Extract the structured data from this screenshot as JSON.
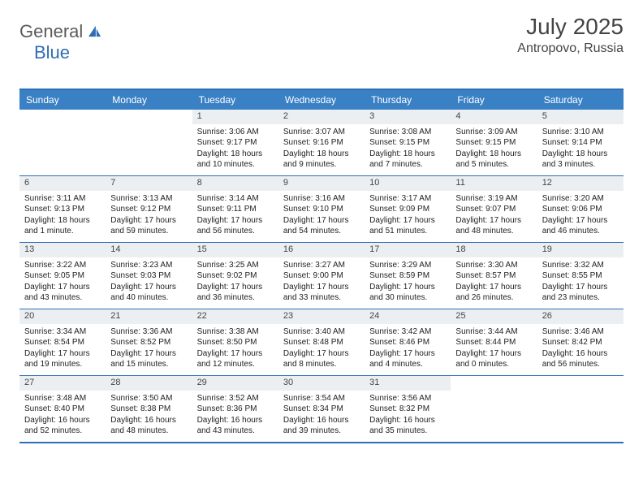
{
  "brand": {
    "part1": "General",
    "part2": "Blue"
  },
  "title": {
    "month": "July 2025",
    "location": "Antropovo, Russia"
  },
  "colors": {
    "accent": "#2e6fb4",
    "header_bg": "#3a80c4",
    "daynum_bg": "#eceff2",
    "text": "#222222",
    "muted": "#5a5a5a",
    "background": "#ffffff"
  },
  "dayHeaders": [
    "Sunday",
    "Monday",
    "Tuesday",
    "Wednesday",
    "Thursday",
    "Friday",
    "Saturday"
  ],
  "weeks": [
    [
      {
        "n": "",
        "sr": "",
        "ss": "",
        "dl": ""
      },
      {
        "n": "",
        "sr": "",
        "ss": "",
        "dl": ""
      },
      {
        "n": "1",
        "sr": "Sunrise: 3:06 AM",
        "ss": "Sunset: 9:17 PM",
        "dl": "Daylight: 18 hours and 10 minutes."
      },
      {
        "n": "2",
        "sr": "Sunrise: 3:07 AM",
        "ss": "Sunset: 9:16 PM",
        "dl": "Daylight: 18 hours and 9 minutes."
      },
      {
        "n": "3",
        "sr": "Sunrise: 3:08 AM",
        "ss": "Sunset: 9:15 PM",
        "dl": "Daylight: 18 hours and 7 minutes."
      },
      {
        "n": "4",
        "sr": "Sunrise: 3:09 AM",
        "ss": "Sunset: 9:15 PM",
        "dl": "Daylight: 18 hours and 5 minutes."
      },
      {
        "n": "5",
        "sr": "Sunrise: 3:10 AM",
        "ss": "Sunset: 9:14 PM",
        "dl": "Daylight: 18 hours and 3 minutes."
      }
    ],
    [
      {
        "n": "6",
        "sr": "Sunrise: 3:11 AM",
        "ss": "Sunset: 9:13 PM",
        "dl": "Daylight: 18 hours and 1 minute."
      },
      {
        "n": "7",
        "sr": "Sunrise: 3:13 AM",
        "ss": "Sunset: 9:12 PM",
        "dl": "Daylight: 17 hours and 59 minutes."
      },
      {
        "n": "8",
        "sr": "Sunrise: 3:14 AM",
        "ss": "Sunset: 9:11 PM",
        "dl": "Daylight: 17 hours and 56 minutes."
      },
      {
        "n": "9",
        "sr": "Sunrise: 3:16 AM",
        "ss": "Sunset: 9:10 PM",
        "dl": "Daylight: 17 hours and 54 minutes."
      },
      {
        "n": "10",
        "sr": "Sunrise: 3:17 AM",
        "ss": "Sunset: 9:09 PM",
        "dl": "Daylight: 17 hours and 51 minutes."
      },
      {
        "n": "11",
        "sr": "Sunrise: 3:19 AM",
        "ss": "Sunset: 9:07 PM",
        "dl": "Daylight: 17 hours and 48 minutes."
      },
      {
        "n": "12",
        "sr": "Sunrise: 3:20 AM",
        "ss": "Sunset: 9:06 PM",
        "dl": "Daylight: 17 hours and 46 minutes."
      }
    ],
    [
      {
        "n": "13",
        "sr": "Sunrise: 3:22 AM",
        "ss": "Sunset: 9:05 PM",
        "dl": "Daylight: 17 hours and 43 minutes."
      },
      {
        "n": "14",
        "sr": "Sunrise: 3:23 AM",
        "ss": "Sunset: 9:03 PM",
        "dl": "Daylight: 17 hours and 40 minutes."
      },
      {
        "n": "15",
        "sr": "Sunrise: 3:25 AM",
        "ss": "Sunset: 9:02 PM",
        "dl": "Daylight: 17 hours and 36 minutes."
      },
      {
        "n": "16",
        "sr": "Sunrise: 3:27 AM",
        "ss": "Sunset: 9:00 PM",
        "dl": "Daylight: 17 hours and 33 minutes."
      },
      {
        "n": "17",
        "sr": "Sunrise: 3:29 AM",
        "ss": "Sunset: 8:59 PM",
        "dl": "Daylight: 17 hours and 30 minutes."
      },
      {
        "n": "18",
        "sr": "Sunrise: 3:30 AM",
        "ss": "Sunset: 8:57 PM",
        "dl": "Daylight: 17 hours and 26 minutes."
      },
      {
        "n": "19",
        "sr": "Sunrise: 3:32 AM",
        "ss": "Sunset: 8:55 PM",
        "dl": "Daylight: 17 hours and 23 minutes."
      }
    ],
    [
      {
        "n": "20",
        "sr": "Sunrise: 3:34 AM",
        "ss": "Sunset: 8:54 PM",
        "dl": "Daylight: 17 hours and 19 minutes."
      },
      {
        "n": "21",
        "sr": "Sunrise: 3:36 AM",
        "ss": "Sunset: 8:52 PM",
        "dl": "Daylight: 17 hours and 15 minutes."
      },
      {
        "n": "22",
        "sr": "Sunrise: 3:38 AM",
        "ss": "Sunset: 8:50 PM",
        "dl": "Daylight: 17 hours and 12 minutes."
      },
      {
        "n": "23",
        "sr": "Sunrise: 3:40 AM",
        "ss": "Sunset: 8:48 PM",
        "dl": "Daylight: 17 hours and 8 minutes."
      },
      {
        "n": "24",
        "sr": "Sunrise: 3:42 AM",
        "ss": "Sunset: 8:46 PM",
        "dl": "Daylight: 17 hours and 4 minutes."
      },
      {
        "n": "25",
        "sr": "Sunrise: 3:44 AM",
        "ss": "Sunset: 8:44 PM",
        "dl": "Daylight: 17 hours and 0 minutes."
      },
      {
        "n": "26",
        "sr": "Sunrise: 3:46 AM",
        "ss": "Sunset: 8:42 PM",
        "dl": "Daylight: 16 hours and 56 minutes."
      }
    ],
    [
      {
        "n": "27",
        "sr": "Sunrise: 3:48 AM",
        "ss": "Sunset: 8:40 PM",
        "dl": "Daylight: 16 hours and 52 minutes."
      },
      {
        "n": "28",
        "sr": "Sunrise: 3:50 AM",
        "ss": "Sunset: 8:38 PM",
        "dl": "Daylight: 16 hours and 48 minutes."
      },
      {
        "n": "29",
        "sr": "Sunrise: 3:52 AM",
        "ss": "Sunset: 8:36 PM",
        "dl": "Daylight: 16 hours and 43 minutes."
      },
      {
        "n": "30",
        "sr": "Sunrise: 3:54 AM",
        "ss": "Sunset: 8:34 PM",
        "dl": "Daylight: 16 hours and 39 minutes."
      },
      {
        "n": "31",
        "sr": "Sunrise: 3:56 AM",
        "ss": "Sunset: 8:32 PM",
        "dl": "Daylight: 16 hours and 35 minutes."
      },
      {
        "n": "",
        "sr": "",
        "ss": "",
        "dl": ""
      },
      {
        "n": "",
        "sr": "",
        "ss": "",
        "dl": ""
      }
    ]
  ]
}
